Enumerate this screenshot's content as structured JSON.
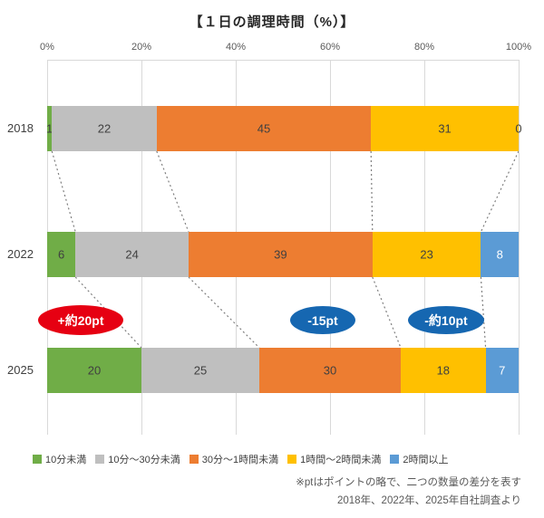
{
  "chart_data": {
    "type": "bar",
    "stacked": true,
    "orientation": "horizontal",
    "title": "【１日の調理時間（%）】",
    "categories": [
      "2018",
      "2022",
      "2025"
    ],
    "series": [
      {
        "name": "10分未満",
        "color": "#70AD47",
        "label_color": "#404040",
        "values": [
          1,
          6,
          20
        ]
      },
      {
        "name": "10分～30分未満",
        "color": "#BFBFBF",
        "label_color": "#404040",
        "values": [
          22,
          24,
          25
        ]
      },
      {
        "name": "30分～1時間未満",
        "color": "#ED7D31",
        "label_color": "#404040",
        "values": [
          45,
          39,
          30
        ]
      },
      {
        "name": "1時間～2時間未満",
        "color": "#FFC000",
        "label_color": "#404040",
        "values": [
          31,
          23,
          18
        ]
      },
      {
        "name": "2時間以上",
        "color": "#5B9BD5",
        "label_color": "#FFFFFF",
        "values": [
          0,
          8,
          7
        ]
      }
    ],
    "xlim": [
      0,
      100
    ],
    "ticks": [
      "0%",
      "20%",
      "40%",
      "60%",
      "80%",
      "100%"
    ],
    "legend_position": "bottom",
    "grid": true
  },
  "annotations": [
    {
      "label": "+約20pt",
      "color": "#E60012"
    },
    {
      "label": "-15pt",
      "color": "#1667B1"
    },
    {
      "label": "-約10pt",
      "color": "#1667B1"
    }
  ],
  "footnotes": [
    "※ptはポイントの略で、二つの数量の差分を表す",
    "2018年、2022年、2025年自社調査より"
  ]
}
